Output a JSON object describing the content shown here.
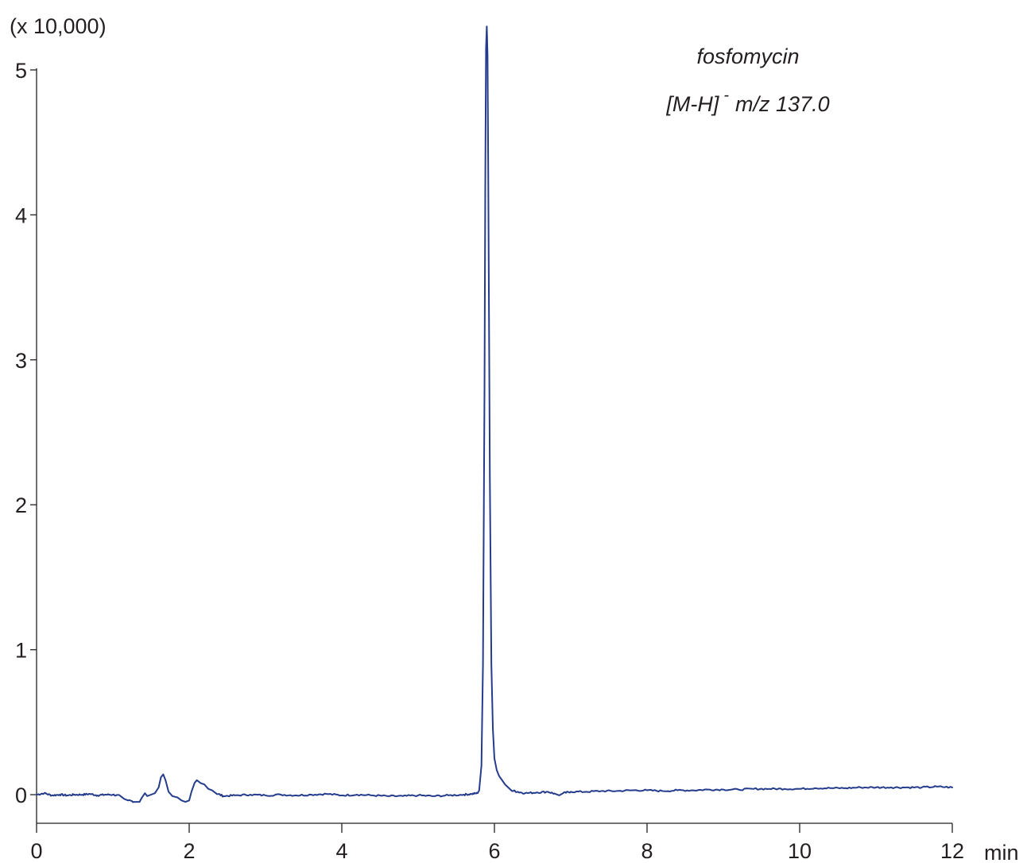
{
  "chart_data": {
    "type": "line",
    "title": "",
    "multiplier_label": "(x 10,000)",
    "xlabel": "min",
    "ylabel": "",
    "xlim": [
      0,
      12
    ],
    "ylim": [
      -0.2,
      5.3
    ],
    "x_ticks": [
      "0",
      "2",
      "4",
      "6",
      "8",
      "10",
      "12"
    ],
    "y_ticks": [
      "0",
      "1",
      "2",
      "3",
      "4",
      "5"
    ],
    "grid": false,
    "legend": "none",
    "annotations": {
      "compound": "fosfomycin",
      "ion_prefix": "[M-H]",
      "ion_superscript": "-",
      "ion_suffix": "m/z 137.0"
    },
    "series": [
      {
        "color": "#253c8c",
        "points": [
          [
            0.0,
            0.0
          ],
          [
            0.1,
            0.01
          ],
          [
            0.2,
            -0.005
          ],
          [
            0.3,
            0.0
          ],
          [
            0.4,
            -0.005
          ],
          [
            0.5,
            0.0
          ],
          [
            0.6,
            0.0
          ],
          [
            0.7,
            0.005
          ],
          [
            0.8,
            -0.005
          ],
          [
            0.9,
            0.0
          ],
          [
            1.0,
            0.0
          ],
          [
            1.1,
            -0.01
          ],
          [
            1.15,
            -0.03
          ],
          [
            1.2,
            -0.04
          ],
          [
            1.3,
            -0.05
          ],
          [
            1.35,
            -0.05
          ],
          [
            1.38,
            -0.02
          ],
          [
            1.42,
            0.01
          ],
          [
            1.45,
            -0.01
          ],
          [
            1.5,
            0.0
          ],
          [
            1.55,
            0.01
          ],
          [
            1.6,
            0.05
          ],
          [
            1.63,
            0.12
          ],
          [
            1.66,
            0.14
          ],
          [
            1.69,
            0.1
          ],
          [
            1.73,
            0.02
          ],
          [
            1.78,
            -0.01
          ],
          [
            1.85,
            -0.02
          ],
          [
            1.9,
            -0.04
          ],
          [
            1.95,
            -0.05
          ],
          [
            2.0,
            -0.04
          ],
          [
            2.03,
            0.02
          ],
          [
            2.07,
            0.08
          ],
          [
            2.1,
            0.1
          ],
          [
            2.15,
            0.08
          ],
          [
            2.2,
            0.07
          ],
          [
            2.25,
            0.04
          ],
          [
            2.3,
            0.03
          ],
          [
            2.35,
            0.01
          ],
          [
            2.45,
            -0.01
          ],
          [
            2.6,
            -0.005
          ],
          [
            2.8,
            0.0
          ],
          [
            3.0,
            -0.005
          ],
          [
            3.2,
            0.0
          ],
          [
            3.4,
            -0.005
          ],
          [
            3.6,
            0.0
          ],
          [
            3.8,
            0.005
          ],
          [
            4.0,
            -0.005
          ],
          [
            4.2,
            0.0
          ],
          [
            4.4,
            -0.005
          ],
          [
            4.6,
            -0.01
          ],
          [
            4.8,
            -0.01
          ],
          [
            5.0,
            -0.005
          ],
          [
            5.2,
            -0.01
          ],
          [
            5.4,
            -0.005
          ],
          [
            5.6,
            0.0
          ],
          [
            5.7,
            0.005
          ],
          [
            5.78,
            0.01
          ],
          [
            5.8,
            0.03
          ],
          [
            5.83,
            0.2
          ],
          [
            5.85,
            0.9
          ],
          [
            5.87,
            2.8
          ],
          [
            5.88,
            4.2
          ],
          [
            5.89,
            5.15
          ],
          [
            5.9,
            5.3
          ],
          [
            5.91,
            5.1
          ],
          [
            5.92,
            4.2
          ],
          [
            5.94,
            2.2
          ],
          [
            5.96,
            0.9
          ],
          [
            5.98,
            0.45
          ],
          [
            6.0,
            0.25
          ],
          [
            6.03,
            0.17
          ],
          [
            6.06,
            0.13
          ],
          [
            6.1,
            0.1
          ],
          [
            6.14,
            0.07
          ],
          [
            6.18,
            0.05
          ],
          [
            6.22,
            0.03
          ],
          [
            6.3,
            0.02
          ],
          [
            6.4,
            0.01
          ],
          [
            6.55,
            0.015
          ],
          [
            6.7,
            0.02
          ],
          [
            6.8,
            0.005
          ],
          [
            6.85,
            -0.005
          ],
          [
            6.9,
            0.01
          ],
          [
            7.0,
            0.02
          ],
          [
            7.2,
            0.02
          ],
          [
            7.4,
            0.025
          ],
          [
            7.6,
            0.025
          ],
          [
            7.8,
            0.03
          ],
          [
            8.0,
            0.03
          ],
          [
            8.2,
            0.025
          ],
          [
            8.4,
            0.03
          ],
          [
            8.6,
            0.03
          ],
          [
            8.8,
            0.035
          ],
          [
            9.0,
            0.035
          ],
          [
            9.2,
            0.035
          ],
          [
            9.4,
            0.04
          ],
          [
            9.6,
            0.04
          ],
          [
            9.8,
            0.04
          ],
          [
            10.0,
            0.04
          ],
          [
            10.2,
            0.045
          ],
          [
            10.4,
            0.045
          ],
          [
            10.6,
            0.045
          ],
          [
            10.8,
            0.05
          ],
          [
            11.0,
            0.05
          ],
          [
            11.2,
            0.05
          ],
          [
            11.4,
            0.05
          ],
          [
            11.6,
            0.05
          ],
          [
            11.8,
            0.055
          ],
          [
            12.0,
            0.05
          ]
        ]
      }
    ]
  }
}
